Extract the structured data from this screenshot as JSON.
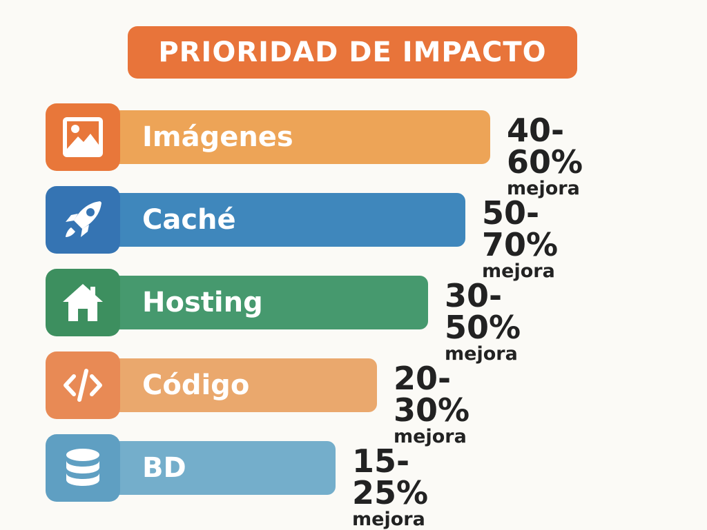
{
  "title": "PRIORIDAD DE IMPACTO",
  "chart_data": {
    "type": "bar",
    "title": "PRIORIDAD DE IMPACTO",
    "orientation": "horizontal",
    "categories": [
      "Imágenes",
      "Caché",
      "Hosting",
      "Código",
      "BD"
    ],
    "ranges": [
      [
        40,
        60
      ],
      [
        50,
        70
      ],
      [
        30,
        50
      ],
      [
        20,
        30
      ],
      [
        15,
        25
      ]
    ],
    "value_labels": [
      "40-60%",
      "50-70%",
      "30-50%",
      "20-30%",
      "15-25%"
    ],
    "sub_label": "mejora",
    "icons": [
      "image-icon",
      "rocket-icon",
      "house-icon",
      "code-icon",
      "database-icon"
    ],
    "bar_colors": [
      "#eda457",
      "#3f87bc",
      "#46996e",
      "#eaa86d",
      "#74aecb"
    ],
    "icon_colors": [
      "#e8773a",
      "#3574b3",
      "#3d8f5f",
      "#e88a55",
      "#5f9fc2"
    ]
  }
}
